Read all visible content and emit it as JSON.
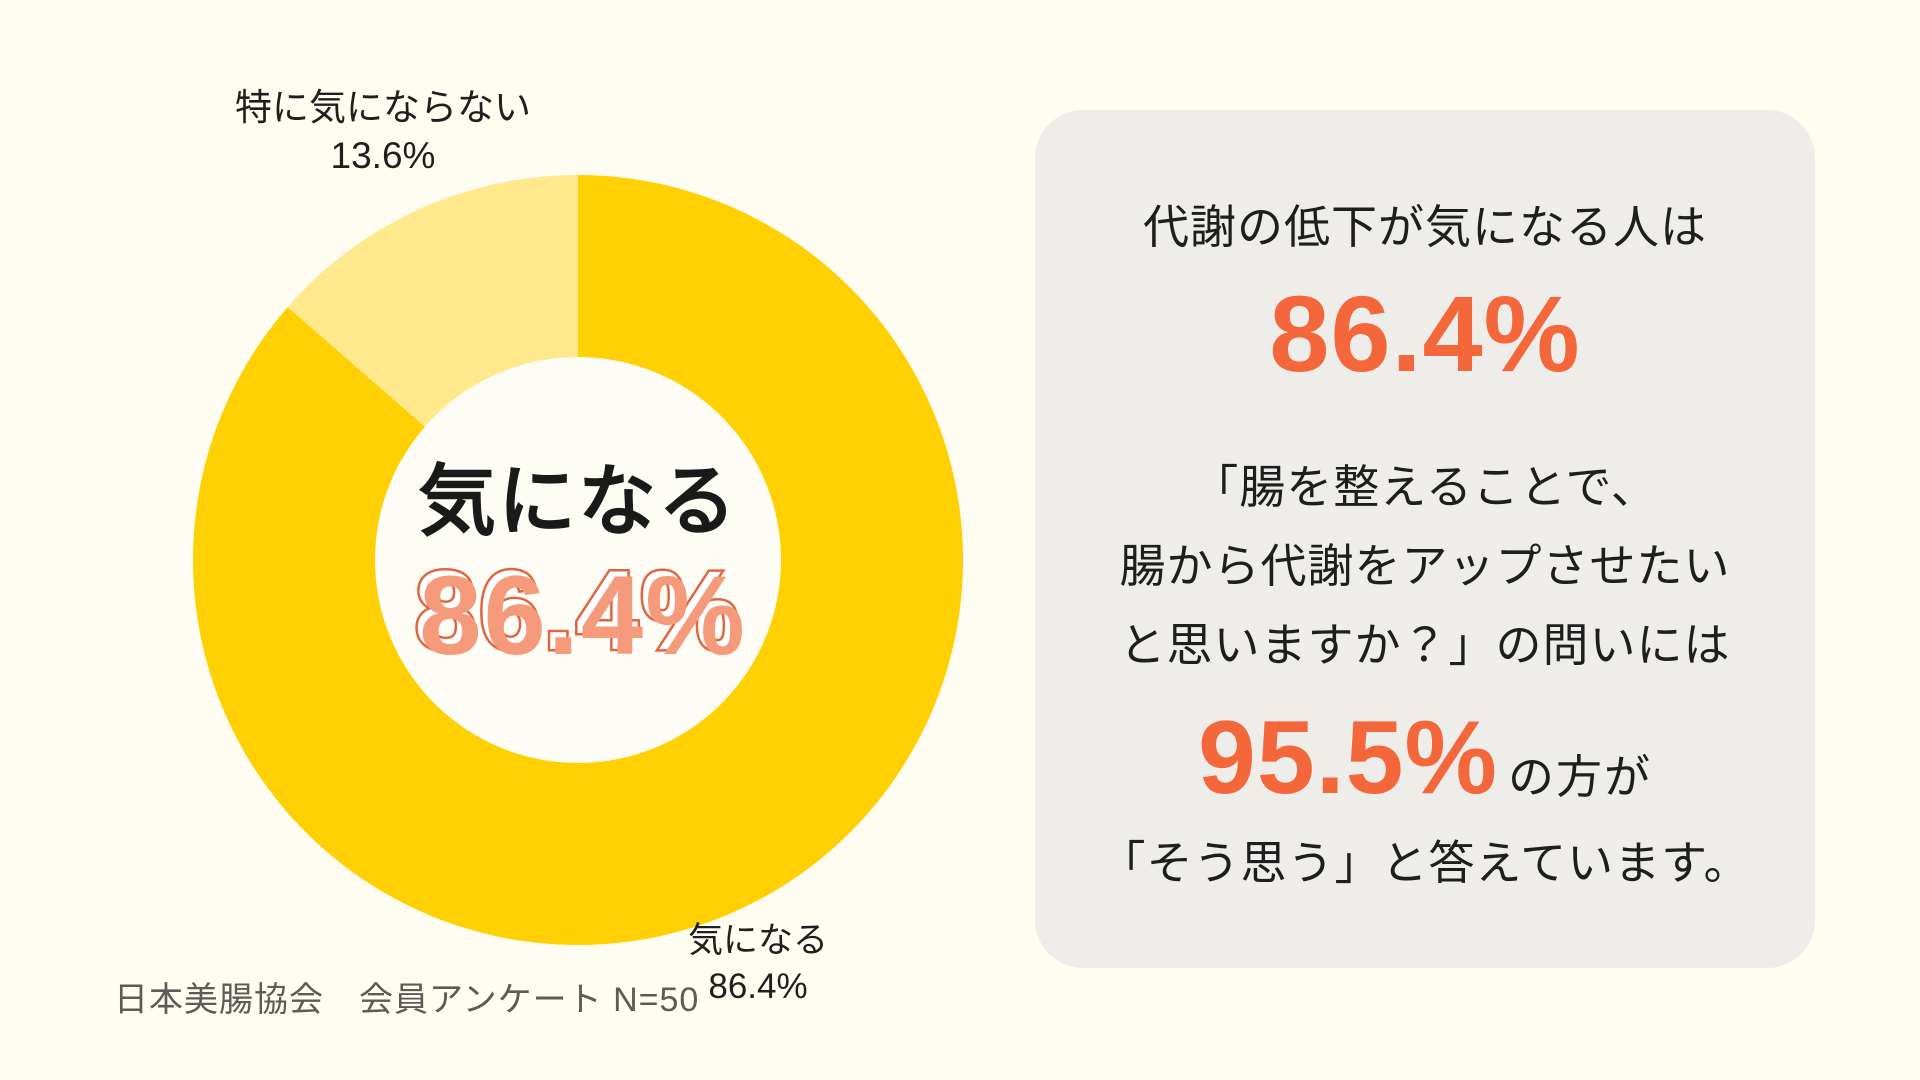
{
  "chart_data": {
    "type": "pie",
    "subtype": "donut",
    "title": "",
    "categories": [
      "気になる",
      "特に気にならない"
    ],
    "values": [
      86.4,
      13.6
    ],
    "unit": "%",
    "colors": [
      "#FFD003",
      "#FFE98C"
    ],
    "start_angle_deg": 0,
    "direction": "clockwise",
    "legend_position": "none",
    "center_label": {
      "title": "気になる",
      "value": "86.4%"
    },
    "slice_labels": [
      {
        "text": "気になる",
        "value": "86.4%"
      },
      {
        "text": "特に気にならない",
        "value": "13.6%"
      }
    ],
    "sample_size": "N=50",
    "source_note": "日本美腸協会　会員アンケート N=50"
  },
  "card": {
    "intro": "代謝の低下が気になる人は",
    "stat1": "86.4%",
    "question_lines": [
      "「腸を整えることで、",
      "腸から代謝をアップさせたい",
      "と思いますか？」の問いには"
    ],
    "stat2": "95.5%",
    "stat2_suffix": "の方が",
    "conclusion": "「そう思う」と答えています。"
  },
  "colors": {
    "page_bg": "#FFFDF1",
    "card_bg": "#EEEDEA",
    "accent_orange": "#F4673A",
    "donut_main": "#FFD003",
    "donut_light": "#FFE98C",
    "donut_hole": "#FDFDF6",
    "center_value_fill": "#F59B7C",
    "center_value_outline": "#E0663F",
    "text_black": "#1F1F1F",
    "footnote_gray": "#5C5B57"
  }
}
